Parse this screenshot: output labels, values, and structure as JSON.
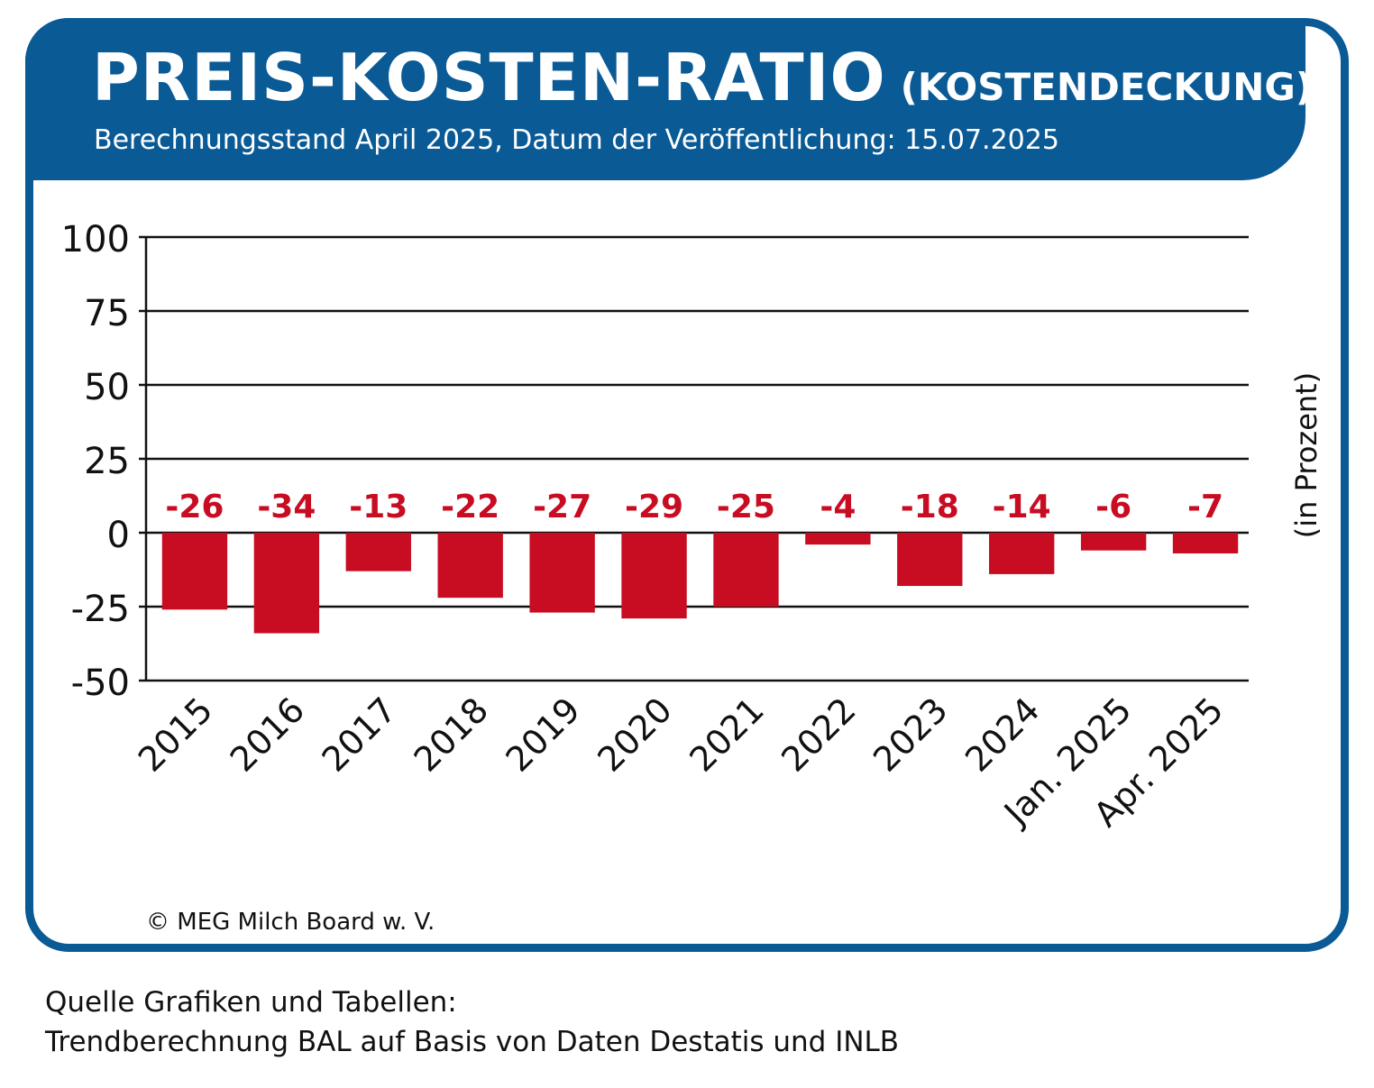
{
  "header": {
    "title": "PREIS-KOSTEN-RATIO",
    "title_suffix": "(KOSTENDECKUNG)",
    "subtitle": "Berechnungsstand April 2025, Datum der Veröffentlichung: 15.07.2025"
  },
  "footer": {
    "copyright": "© MEG Milch Board w. V.",
    "source_line1": "Quelle Grafiken und Tabellen:",
    "source_line2": "Trendberechnung BAL auf Basis von Daten Destatis und INLB"
  },
  "colors": {
    "brand_blue": "#0a5a96",
    "bar_red": "#c80c22"
  },
  "chart_data": {
    "type": "bar",
    "title": "PREIS-KOSTEN-RATIO (KOSTENDECKUNG)",
    "ylabel": "(in Prozent)",
    "xlabel": "",
    "categories": [
      "2015",
      "2016",
      "2017",
      "2018",
      "2019",
      "2020",
      "2021",
      "2022",
      "2023",
      "2024",
      "Jan. 2025",
      "Apr. 2025"
    ],
    "values": [
      -26,
      -34,
      -13,
      -22,
      -27,
      -29,
      -25,
      -4,
      -18,
      -14,
      -6,
      -7
    ],
    "value_labels": [
      "-26",
      "-34",
      "-13",
      "-22",
      "-27",
      "-29",
      "-25",
      "-4",
      "-18",
      "-14",
      "-6",
      "-7"
    ],
    "yticks": [
      100,
      75,
      50,
      25,
      0,
      -25,
      -50
    ],
    "ylim": [
      -50,
      100
    ],
    "grid": true
  }
}
